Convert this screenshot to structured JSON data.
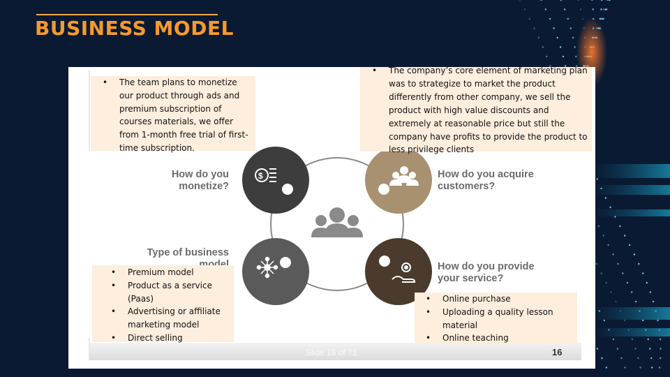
{
  "title": "BUSINESS MODEL",
  "questions": {
    "monetize": "How do you monetize?",
    "acquire": "How do you acquire customers?",
    "business_model": "Type of business model",
    "provide": "How do you provide your service?"
  },
  "notes": {
    "monetize": [
      "The team plans to monetize our product through ads and premium subscription of courses materials, we offer from 1-month free trial of first-time subscription."
    ],
    "marketing": [
      "The company’s core element of marketing plan was to strategize to market the product differently from other company, we sell the product with high value discounts and extremely at reasonable price but still the company have profits to provide the product to less privilege clients"
    ],
    "business_model": [
      "Premium model",
      "Product as a service (Paas)",
      "Advertising or affiliate marketing model",
      "Direct selling"
    ],
    "service": [
      "Online purchase",
      "Uploading a quality lesson material",
      "Online teaching"
    ]
  },
  "footer": {
    "slide_counter": "Slide 16 of 71",
    "page_number": "16"
  },
  "colors": {
    "title": "#f59a2e",
    "background": "#0b1a33",
    "note_background": "#fdeedd",
    "circle_monetize": "#3d3d3d",
    "circle_acquire": "#a89170",
    "circle_model": "#5a5a5a",
    "circle_service": "#4a3b2e"
  },
  "icons": {
    "monetize": "money-coins-icon",
    "acquire": "customers-group-icon",
    "business_model": "network-nodes-icon",
    "service": "hand-gear-icon",
    "center": "business-team-icon"
  }
}
